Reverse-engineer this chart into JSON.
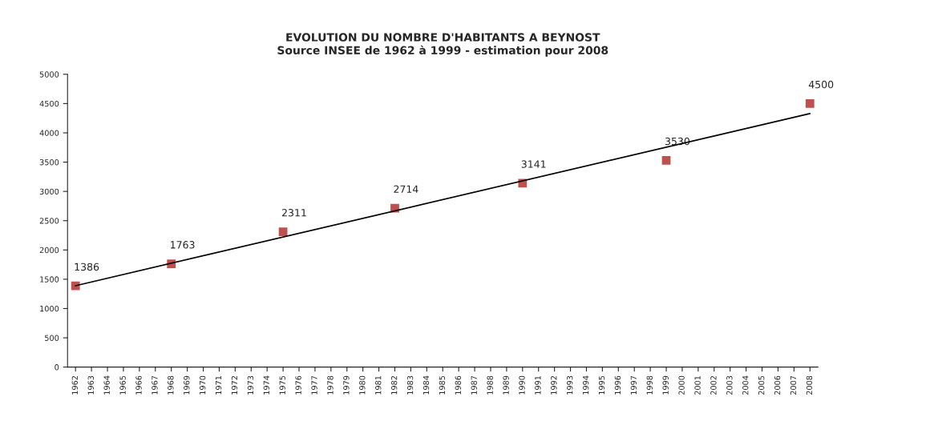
{
  "chart_data": {
    "type": "scatter",
    "title": "EVOLUTION DU NOMBRE D'HABITANTS A BEYNOST\nSource INSEE de 1962 à 1999 - estimation pour 2008",
    "series": [
      {
        "color": "#c0504d",
        "x": [
          1962,
          1968,
          1975,
          1982,
          1990,
          1999,
          2008
        ],
        "values": [
          1386,
          1763,
          2311,
          2714,
          3141,
          3530,
          4500
        ],
        "marker": "square",
        "data_labels": true
      },
      {
        "type": "line",
        "color": "#000000",
        "x": [
          1962,
          2008
        ],
        "values": [
          1390,
          4330
        ],
        "line_style": "solid",
        "marker": "none"
      }
    ],
    "xlim": [
      1961.5,
      2008.5
    ],
    "xticks": [
      1962,
      1963,
      1964,
      1965,
      1966,
      1967,
      1968,
      1969,
      1970,
      1971,
      1972,
      1973,
      1974,
      1975,
      1976,
      1977,
      1978,
      1979,
      1980,
      1981,
      1982,
      1983,
      1984,
      1985,
      1986,
      1987,
      1988,
      1989,
      1990,
      1991,
      1992,
      1993,
      1994,
      1995,
      1996,
      1997,
      1998,
      1999,
      2000,
      2001,
      2002,
      2003,
      2004,
      2005,
      2006,
      2007,
      2008
    ],
    "ylim": [
      0,
      5000
    ],
    "yticks": [
      0,
      500,
      1000,
      1500,
      2000,
      2500,
      3000,
      3500,
      4000,
      4500,
      5000
    ],
    "grid": false,
    "legend": false
  }
}
